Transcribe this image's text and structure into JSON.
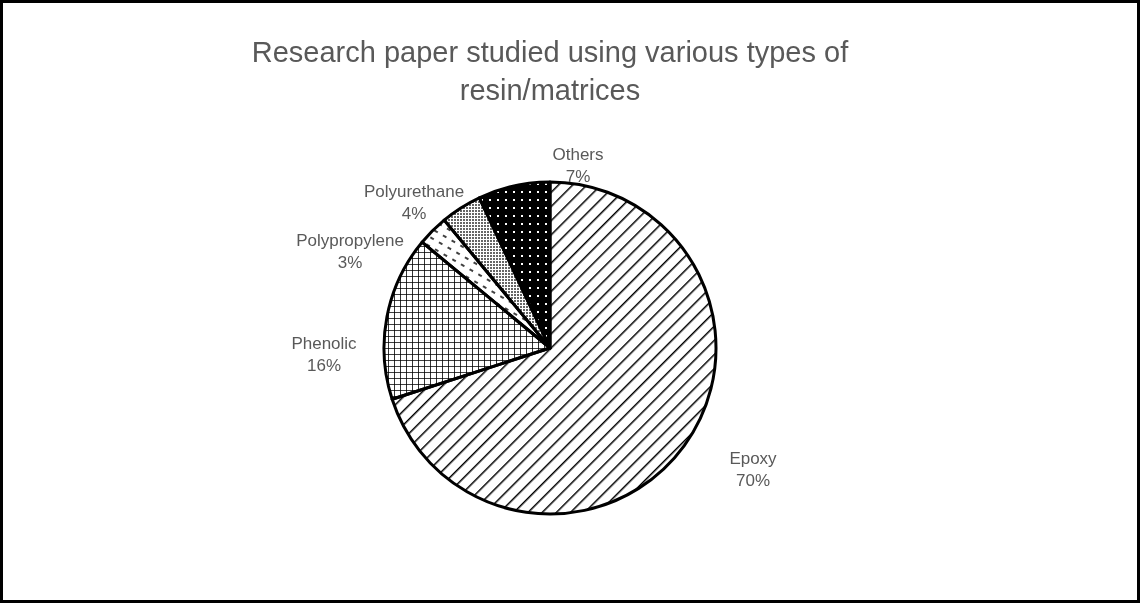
{
  "chart_data": {
    "type": "pie",
    "title": "Research paper studied using various types of resin/matrices",
    "categories": [
      "Epoxy",
      "Phenolic",
      "Polypropylene",
      "Polyurethane",
      "Others"
    ],
    "values": [
      70,
      16,
      3,
      4,
      7
    ],
    "colors": [
      "#000000",
      "#000000",
      "#000000",
      "#000000",
      "#000000"
    ],
    "value_labels": [
      "70%",
      "16%",
      "3%",
      "4%",
      "7%"
    ]
  }
}
